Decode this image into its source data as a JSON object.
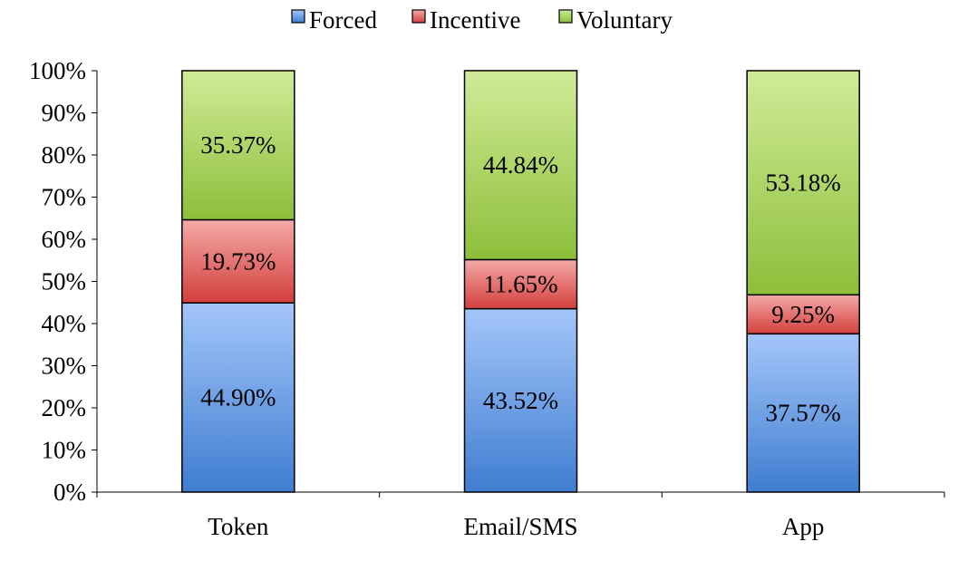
{
  "chart_data": {
    "type": "bar",
    "stacked": true,
    "percent_stacked": true,
    "categories": [
      "Token",
      "Email/SMS",
      "App"
    ],
    "series": [
      {
        "name": "Forced",
        "values": [
          44.9,
          43.52,
          37.57
        ],
        "color": "#6F9CE0"
      },
      {
        "name": "Incentive",
        "values": [
          19.73,
          11.65,
          9.25
        ],
        "color": "#DC5C5A"
      },
      {
        "name": "Voluntary",
        "values": [
          35.37,
          44.84,
          53.18
        ],
        "color": "#A6CF5A"
      }
    ],
    "data_labels": [
      [
        "44.90%",
        "43.52%",
        "37.57%"
      ],
      [
        "19.73%",
        "11.65%",
        "9.25%"
      ],
      [
        "35.37%",
        "44.84%",
        "53.18%"
      ]
    ],
    "yticks": [
      "0%",
      "10%",
      "20%",
      "30%",
      "40%",
      "50%",
      "60%",
      "70%",
      "80%",
      "90%",
      "100%"
    ],
    "ylim": [
      0,
      100
    ],
    "title": "",
    "xlabel": "",
    "ylabel": "",
    "legend_position": "top-center",
    "grid": false
  }
}
